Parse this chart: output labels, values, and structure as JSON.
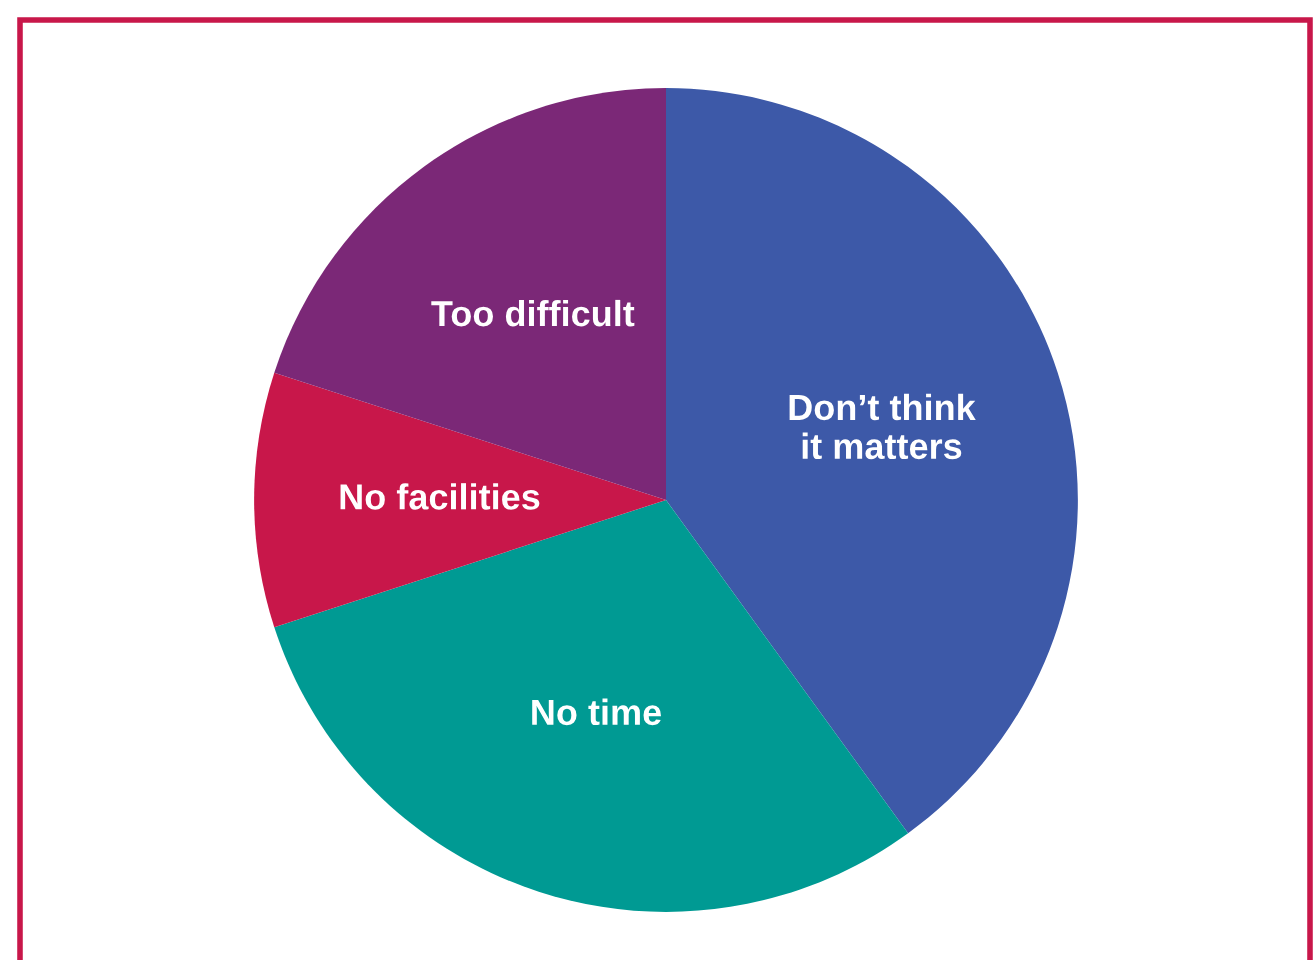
{
  "chart_data": {
    "type": "pie",
    "categories": [
      "Don’t think\nit matters",
      "No time",
      "No facilities",
      "Too difficult"
    ],
    "values": [
      40,
      30,
      10,
      20
    ],
    "colors": [
      "#3d59a8",
      "#009a93",
      "#c8174a",
      "#7b2877"
    ]
  }
}
